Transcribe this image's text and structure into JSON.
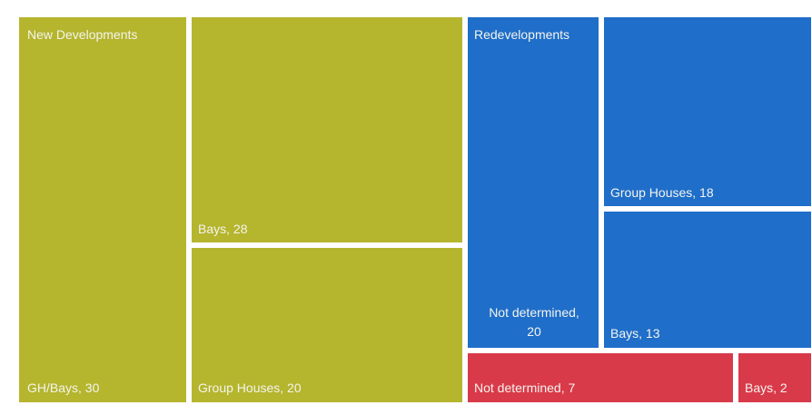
{
  "chart_data": {
    "type": "treemap",
    "title": "",
    "colors": {
      "yellow": "#b5b52e",
      "blue": "#1f6ec9",
      "red": "#d93a4a",
      "border": "#ffffff"
    },
    "groups": [
      {
        "name": "New Developments",
        "color": "#b5b52e",
        "items": [
          {
            "label": "GH/Bays, 30",
            "value": 30
          },
          {
            "label": "Bays, 28",
            "value": 28
          },
          {
            "label": "Group Houses, 20",
            "value": 20
          }
        ]
      },
      {
        "name": "Redevelopments",
        "color": "#1f6ec9",
        "items": [
          {
            "label": "Not determined, 20",
            "value": 20
          },
          {
            "label": "Group Houses, 18",
            "value": 18
          },
          {
            "label": "Bays, 13",
            "value": 13
          }
        ]
      },
      {
        "name": "",
        "color": "#d93a4a",
        "items": [
          {
            "label": "Not determined, 7",
            "value": 7
          },
          {
            "label": "Bays, 2",
            "value": 2
          }
        ]
      }
    ]
  }
}
